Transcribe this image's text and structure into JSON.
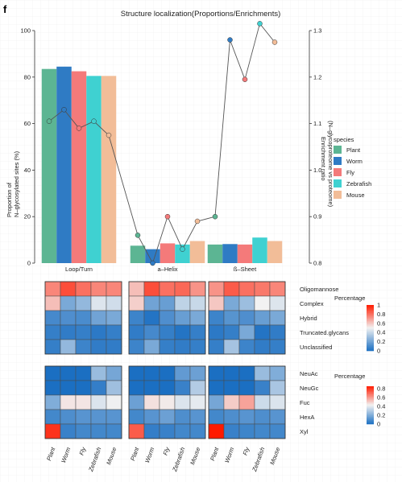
{
  "panel_letter": "f",
  "colors": {
    "species": [
      "#5cb593",
      "#2f7bc4",
      "#f47a7a",
      "#3fd1d1",
      "#f2bd98"
    ],
    "heat_low": "#1b6fc2",
    "heat_mid": "#f2f2f2",
    "heat_high": "#ff1a00",
    "line": "#555555",
    "grid": "#eeeeee"
  },
  "chart_data": [
    {
      "type": "bar",
      "title": "Structure localization(Proportions/Enrichments)",
      "categories": [
        "Loop/Turn",
        "a–Helix",
        "ß–Sheet"
      ],
      "ylabel": [
        "Proportion of",
        "N–glycosylated sites (%)"
      ],
      "ylim": [
        0,
        100
      ],
      "yticks": [
        0,
        20,
        40,
        60,
        80,
        100
      ],
      "y2label": [
        "Enrichment ratio",
        "(N–glycoproteome vs proteome)"
      ],
      "y2lim": [
        0.8,
        1.3
      ],
      "y2ticks": [
        "0.8",
        "0.9",
        "1.0",
        "1.1",
        "1.2",
        "1.3"
      ],
      "legend_title": "species",
      "legend_position": "right",
      "series": [
        {
          "name": "Plant",
          "values": [
            83.5,
            7.5,
            8.0
          ],
          "enrichment": [
            1.105,
            0.86,
            0.9
          ]
        },
        {
          "name": "Worm",
          "values": [
            84.5,
            6.0,
            8.2
          ],
          "enrichment": [
            1.13,
            0.8,
            1.28
          ]
        },
        {
          "name": "Fly",
          "values": [
            82.5,
            8.5,
            8.0
          ],
          "enrichment": [
            1.09,
            0.9,
            1.195
          ]
        },
        {
          "name": "Zebrafish",
          "values": [
            80.5,
            8.0,
            11.0
          ],
          "enrichment": [
            1.105,
            0.83,
            1.315
          ]
        },
        {
          "name": "Mouse",
          "values": [
            80.5,
            9.5,
            9.5
          ],
          "enrichment": [
            1.075,
            0.89,
            1.275
          ]
        }
      ]
    },
    {
      "type": "heatmap",
      "legend_title": "Percentage",
      "legend_ticks": [
        "1",
        "0.8",
        "0.6",
        "0.4",
        "0.2",
        "0"
      ],
      "vmax": 1.0,
      "rows": [
        "Oligomannose",
        "Complex",
        "Hybrid",
        "Truncated.glycans",
        "Unclassified"
      ],
      "columns": [
        "Plant",
        "Worm",
        "Fly",
        "Zebrafish",
        "Mouse"
      ],
      "panels": [
        {
          "category": "Loop/Turn",
          "values": [
            [
              0.75,
              0.88,
              0.8,
              0.75,
              0.75
            ],
            [
              0.62,
              0.22,
              0.28,
              0.45,
              0.42
            ],
            [
              0.1,
              0.12,
              0.11,
              0.2,
              0.22
            ],
            [
              0.06,
              0.05,
              0.06,
              0.04,
              0.06
            ],
            [
              0.06,
              0.28,
              0.08,
              0.05,
              0.05
            ]
          ]
        },
        {
          "category": "a–Helix",
          "values": [
            [
              0.62,
              0.88,
              0.8,
              0.82,
              0.72
            ],
            [
              0.58,
              0.2,
              0.18,
              0.38,
              0.4
            ],
            [
              0.08,
              0.02,
              0.12,
              0.18,
              0.22
            ],
            [
              0.05,
              0.1,
              0.06,
              0.02,
              0.06
            ],
            [
              0.08,
              0.22,
              0.06,
              0.05,
              0.06
            ]
          ]
        },
        {
          "category": "ß–Sheet",
          "values": [
            [
              0.72,
              0.85,
              0.8,
              0.78,
              0.75
            ],
            [
              0.6,
              0.22,
              0.3,
              0.5,
              0.45
            ],
            [
              0.08,
              0.14,
              0.12,
              0.18,
              0.22
            ],
            [
              0.04,
              0.06,
              0.22,
              0.02,
              0.05
            ],
            [
              0.06,
              0.32,
              0.08,
              0.05,
              0.06
            ]
          ]
        }
      ]
    },
    {
      "type": "heatmap",
      "legend_title": "Percentage",
      "legend_ticks": [
        "0.8",
        "0.6",
        "0.4",
        "0.2",
        "0"
      ],
      "vmax": 0.85,
      "rows": [
        "NeuAc",
        "NeuGc",
        "Fuc",
        "HexA",
        "Xyl"
      ],
      "columns": [
        "Plant",
        "Worm",
        "Fly",
        "Zebrafish",
        "Mouse"
      ],
      "panels": [
        {
          "category": "Loop/Turn",
          "values": [
            [
              0.0,
              0.0,
              0.0,
              0.25,
              0.18
            ],
            [
              0.0,
              0.0,
              0.0,
              0.05,
              0.26
            ],
            [
              0.2,
              0.45,
              0.45,
              0.38,
              0.42
            ],
            [
              0.08,
              0.1,
              0.12,
              0.12,
              0.12
            ],
            [
              0.8,
              0.06,
              0.08,
              0.08,
              0.08
            ]
          ]
        },
        {
          "category": "a–Helix",
          "values": [
            [
              0.0,
              0.0,
              0.0,
              0.14,
              0.16
            ],
            [
              0.0,
              0.0,
              0.0,
              0.06,
              0.3
            ],
            [
              0.16,
              0.46,
              0.44,
              0.38,
              0.4
            ],
            [
              0.08,
              0.12,
              0.16,
              0.1,
              0.12
            ],
            [
              0.72,
              0.05,
              0.06,
              0.08,
              0.08
            ]
          ]
        },
        {
          "category": "ß–Sheet",
          "values": [
            [
              0.0,
              0.0,
              0.0,
              0.25,
              0.2
            ],
            [
              0.0,
              0.0,
              0.0,
              0.06,
              0.28
            ],
            [
              0.18,
              0.5,
              0.58,
              0.35,
              0.38
            ],
            [
              0.08,
              0.1,
              0.12,
              0.1,
              0.12
            ],
            [
              0.85,
              0.06,
              0.07,
              0.08,
              0.08
            ]
          ]
        }
      ]
    }
  ]
}
